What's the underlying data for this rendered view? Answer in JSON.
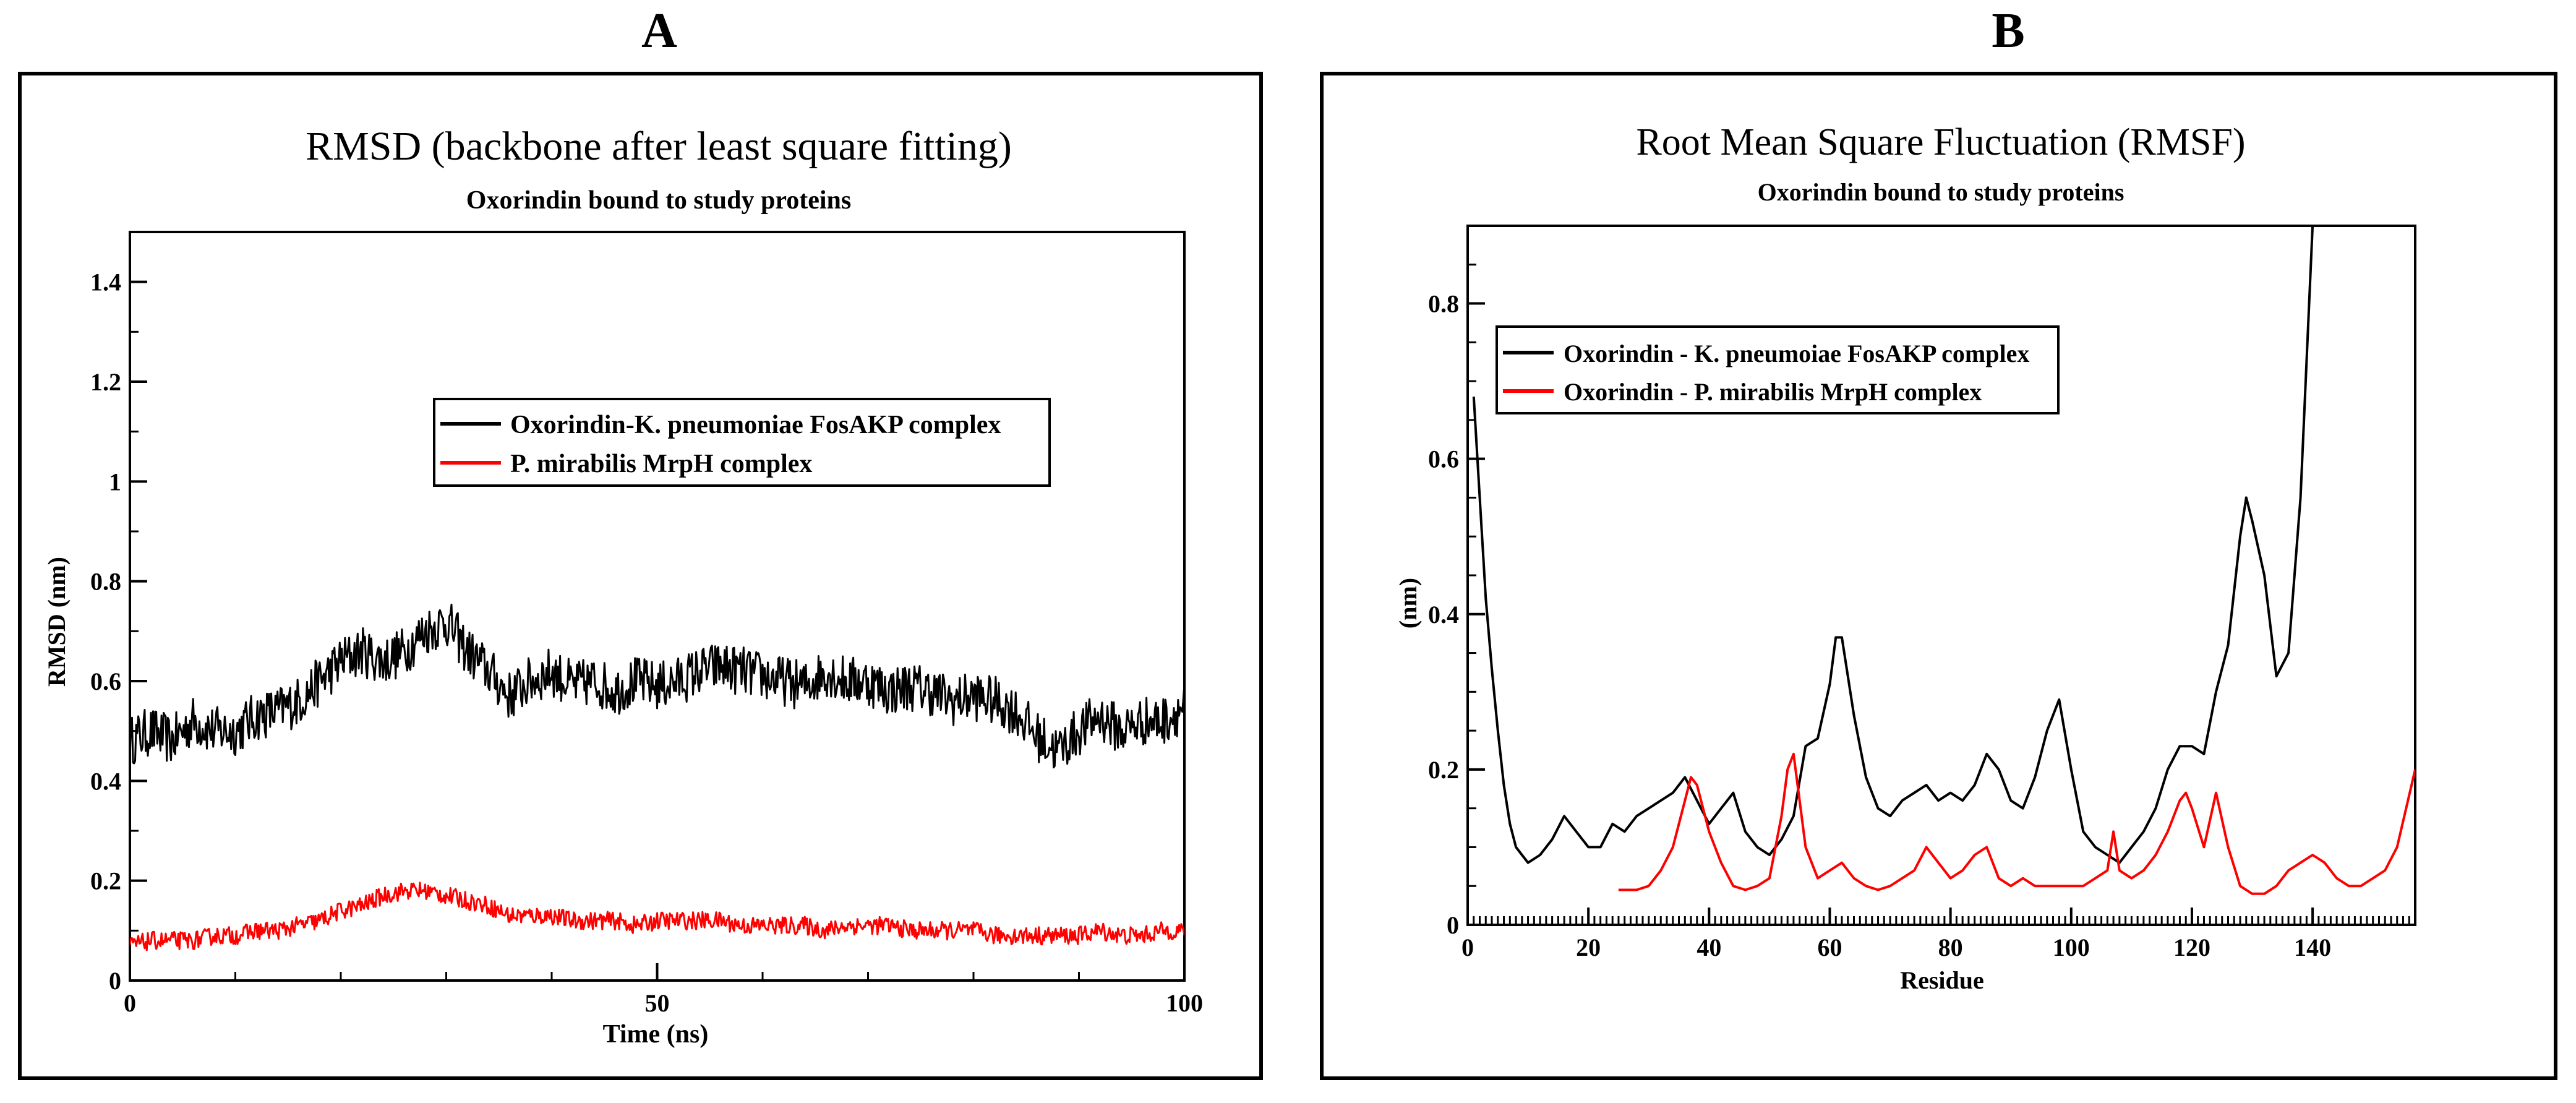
{
  "panels": [
    {
      "letter": "A",
      "title": "RMSD (backbone after least square fitting)",
      "subtitle": "Oxorindin bound to study proteins",
      "xlabel": "Time (ns)",
      "ylabel": "RMSD (nm)",
      "xticks": [
        "0",
        "50",
        "100"
      ],
      "yticks": [
        "0",
        "0.2",
        "0.4",
        "0.6",
        "0.8",
        "1",
        "1.2",
        "1.4"
      ],
      "legend": [
        "Oxorindin-K. pneumoniae FosAKP complex",
        "P. mirabilis MrpH complex"
      ]
    },
    {
      "letter": "B",
      "title": "Root Mean Square Fluctuation (RMSF)",
      "subtitle": "Oxorindin bound to study proteins",
      "xlabel": "Residue",
      "ylabel": "(nm)",
      "xticks": [
        "0",
        "20",
        "40",
        "60",
        "80",
        "100",
        "120",
        "140"
      ],
      "yticks": [
        "0",
        "0.2",
        "0.4",
        "0.6",
        "0.8"
      ],
      "legend": [
        "Oxorindin - K. pneumoiae FosAKP complex",
        "Oxorindin - P. mirabilis MrpH complex"
      ]
    }
  ],
  "colors": {
    "series1": "#000000",
    "series2": "#ff0000"
  },
  "chart_data": [
    {
      "type": "line",
      "title": "RMSD (backbone after least square fitting)",
      "subtitle": "Oxorindin bound to study proteins",
      "xlabel": "Time (ns)",
      "ylabel": "RMSD (nm)",
      "xlim": [
        0,
        100
      ],
      "ylim": [
        0,
        1.5
      ],
      "xticks": [
        0,
        50,
        100
      ],
      "yticks": [
        0,
        0.2,
        0.4,
        0.6,
        0.8,
        1,
        1.2,
        1.4
      ],
      "legend_position": "center-right",
      "series": [
        {
          "name": "Oxorindin-K. pneumoniae FosAKP complex",
          "color": "#000000",
          "x": [
            0,
            2,
            4,
            6,
            8,
            10,
            12,
            14,
            16,
            18,
            20,
            22,
            24,
            26,
            28,
            30,
            32,
            34,
            36,
            38,
            40,
            42,
            44,
            46,
            48,
            50,
            52,
            54,
            56,
            58,
            60,
            62,
            64,
            66,
            68,
            70,
            72,
            74,
            76,
            78,
            80,
            82,
            84,
            86,
            88,
            90,
            92,
            94,
            96,
            98,
            100
          ],
          "y": [
            0.48,
            0.5,
            0.48,
            0.52,
            0.5,
            0.5,
            0.53,
            0.54,
            0.56,
            0.6,
            0.64,
            0.66,
            0.64,
            0.66,
            0.7,
            0.72,
            0.66,
            0.62,
            0.57,
            0.6,
            0.62,
            0.59,
            0.6,
            0.58,
            0.6,
            0.59,
            0.6,
            0.62,
            0.63,
            0.62,
            0.61,
            0.6,
            0.59,
            0.62,
            0.6,
            0.6,
            0.58,
            0.59,
            0.58,
            0.56,
            0.57,
            0.56,
            0.54,
            0.49,
            0.46,
            0.5,
            0.53,
            0.5,
            0.52,
            0.52,
            0.55
          ],
          "noise": 0.05
        },
        {
          "name": "P. mirabilis MrpH complex",
          "color": "#ff0000",
          "x": [
            0,
            2,
            4,
            6,
            8,
            10,
            12,
            14,
            16,
            18,
            20,
            22,
            24,
            26,
            28,
            30,
            32,
            34,
            36,
            38,
            40,
            42,
            44,
            46,
            48,
            50,
            52,
            54,
            56,
            58,
            60,
            62,
            64,
            66,
            68,
            70,
            72,
            74,
            76,
            78,
            80,
            82,
            84,
            86,
            88,
            90,
            92,
            94,
            96,
            98,
            100
          ],
          "y": [
            0.07,
            0.08,
            0.08,
            0.08,
            0.09,
            0.09,
            0.1,
            0.1,
            0.11,
            0.12,
            0.14,
            0.15,
            0.17,
            0.18,
            0.18,
            0.17,
            0.16,
            0.15,
            0.13,
            0.13,
            0.13,
            0.12,
            0.12,
            0.12,
            0.11,
            0.12,
            0.12,
            0.12,
            0.12,
            0.11,
            0.11,
            0.11,
            0.11,
            0.1,
            0.11,
            0.11,
            0.11,
            0.1,
            0.1,
            0.1,
            0.1,
            0.09,
            0.09,
            0.09,
            0.09,
            0.09,
            0.1,
            0.09,
            0.09,
            0.1,
            0.1
          ],
          "noise": 0.018
        }
      ]
    },
    {
      "type": "line",
      "title": "Root Mean Square Fluctuation (RMSF)",
      "subtitle": "Oxorindin bound to study proteins",
      "xlabel": "Residue",
      "ylabel": "(nm)",
      "xlim": [
        0,
        157
      ],
      "ylim": [
        0,
        0.9
      ],
      "xticks": [
        0,
        20,
        40,
        60,
        80,
        100,
        120,
        140
      ],
      "yticks": [
        0,
        0.2,
        0.4,
        0.6,
        0.8
      ],
      "legend_position": "top-left",
      "series": [
        {
          "name": "Oxorindin - K. pneumoiae FosAKP complex",
          "color": "#000000",
          "x": [
            1,
            2,
            3,
            4,
            5,
            6,
            7,
            8,
            9,
            10,
            12,
            14,
            16,
            18,
            20,
            22,
            24,
            26,
            28,
            30,
            32,
            34,
            36,
            38,
            40,
            42,
            44,
            46,
            48,
            50,
            52,
            54,
            56,
            58,
            60,
            61,
            62,
            64,
            66,
            68,
            70,
            72,
            74,
            76,
            78,
            80,
            82,
            84,
            86,
            88,
            90,
            92,
            94,
            96,
            98,
            100,
            102,
            104,
            106,
            108,
            110,
            112,
            114,
            116,
            118,
            120,
            122,
            124,
            126,
            128,
            129,
            130,
            132,
            134,
            136,
            138,
            140
          ],
          "y": [
            0.68,
            0.55,
            0.42,
            0.33,
            0.25,
            0.18,
            0.13,
            0.1,
            0.09,
            0.08,
            0.09,
            0.11,
            0.14,
            0.12,
            0.1,
            0.1,
            0.13,
            0.12,
            0.14,
            0.15,
            0.16,
            0.17,
            0.19,
            0.16,
            0.13,
            0.15,
            0.17,
            0.12,
            0.1,
            0.09,
            0.11,
            0.14,
            0.23,
            0.24,
            0.31,
            0.37,
            0.37,
            0.27,
            0.19,
            0.15,
            0.14,
            0.16,
            0.17,
            0.18,
            0.16,
            0.17,
            0.16,
            0.18,
            0.22,
            0.2,
            0.16,
            0.15,
            0.19,
            0.25,
            0.29,
            0.2,
            0.12,
            0.1,
            0.09,
            0.08,
            0.1,
            0.12,
            0.15,
            0.2,
            0.23,
            0.23,
            0.22,
            0.3,
            0.36,
            0.5,
            0.55,
            0.52,
            0.45,
            0.32,
            0.35,
            0.55,
            0.9
          ],
          "noise": 0
        },
        {
          "name": "Oxorindin - P. mirabilis MrpH complex",
          "color": "#ff0000",
          "x": [
            25,
            28,
            30,
            32,
            34,
            36,
            37,
            38,
            40,
            42,
            44,
            46,
            48,
            50,
            52,
            53,
            54,
            55,
            56,
            58,
            60,
            62,
            64,
            66,
            68,
            70,
            72,
            74,
            76,
            78,
            80,
            82,
            84,
            86,
            88,
            90,
            92,
            94,
            96,
            98,
            100,
            102,
            104,
            106,
            107,
            108,
            110,
            112,
            114,
            116,
            118,
            119,
            120,
            122,
            124,
            126,
            128,
            130,
            132,
            134,
            136,
            138,
            140,
            142,
            144,
            146,
            148,
            150,
            152,
            154,
            157
          ],
          "y": [
            0.045,
            0.045,
            0.05,
            0.07,
            0.1,
            0.16,
            0.19,
            0.18,
            0.12,
            0.08,
            0.05,
            0.045,
            0.05,
            0.06,
            0.14,
            0.2,
            0.22,
            0.16,
            0.1,
            0.06,
            0.07,
            0.08,
            0.06,
            0.05,
            0.045,
            0.05,
            0.06,
            0.07,
            0.1,
            0.08,
            0.06,
            0.07,
            0.09,
            0.1,
            0.06,
            0.05,
            0.06,
            0.05,
            0.05,
            0.05,
            0.05,
            0.05,
            0.06,
            0.07,
            0.12,
            0.07,
            0.06,
            0.07,
            0.09,
            0.12,
            0.16,
            0.17,
            0.15,
            0.1,
            0.17,
            0.1,
            0.05,
            0.04,
            0.04,
            0.05,
            0.07,
            0.08,
            0.09,
            0.08,
            0.06,
            0.05,
            0.05,
            0.06,
            0.07,
            0.1,
            0.2
          ],
          "noise": 0
        }
      ]
    }
  ]
}
